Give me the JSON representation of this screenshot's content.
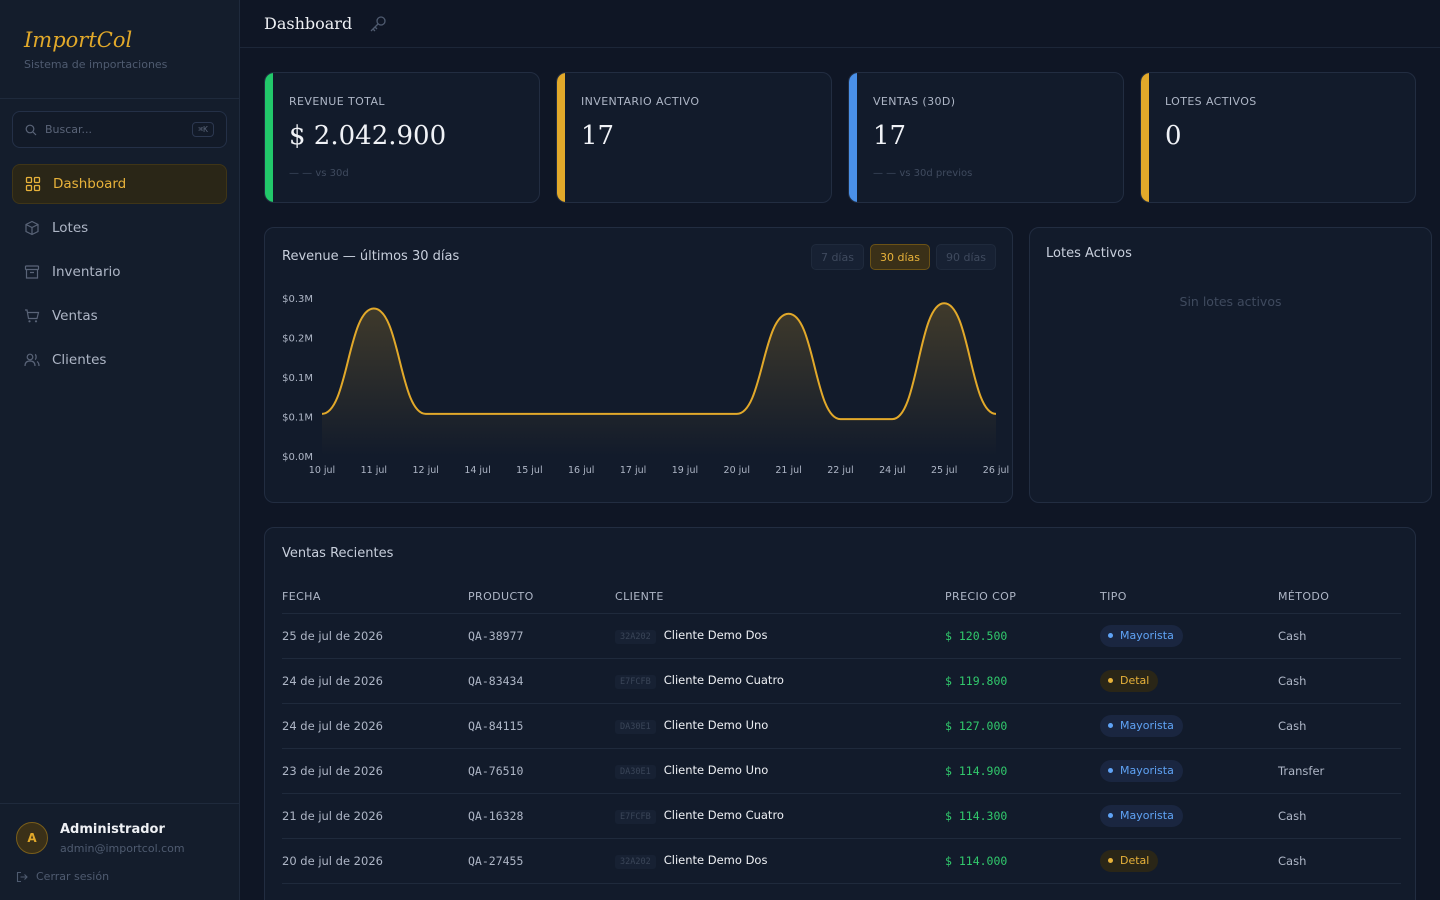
{
  "sidebar": {
    "brand": "ImportCol",
    "brand_sub": "Sistema de importaciones",
    "search_placeholder": "Buscar...",
    "search_shortcut": "⌘K",
    "items": [
      {
        "label": "Dashboard",
        "icon": "grid-icon",
        "active": true
      },
      {
        "label": "Lotes",
        "icon": "box-icon",
        "active": false
      },
      {
        "label": "Inventario",
        "icon": "archive-icon",
        "active": false
      },
      {
        "label": "Ventas",
        "icon": "cart-icon",
        "active": false
      },
      {
        "label": "Clientes",
        "icon": "users-icon",
        "active": false
      }
    ],
    "user": {
      "initial": "A",
      "name": "Administrador",
      "email": "admin@importcol.com"
    },
    "logout": "Cerrar sesión"
  },
  "topbar": {
    "title": "Dashboard",
    "icon": "key-icon"
  },
  "stats": [
    {
      "label": "REVENUE TOTAL",
      "value": "$ 2.042.900",
      "sub": "— — vs 30d",
      "color": "#22c86a"
    },
    {
      "label": "INVENTARIO ACTIVO",
      "value": "17",
      "sub": "",
      "color": "#e2a92a"
    },
    {
      "label": "VENTAS (30D)",
      "value": "17",
      "sub": "— — vs 30d previos",
      "color": "#4a90e8"
    },
    {
      "label": "LOTES ACTIVOS",
      "value": "0",
      "sub": "",
      "color": "#e2a92a"
    }
  ],
  "revenue_panel": {
    "title": "Revenue — últimos 30 días",
    "ranges": [
      {
        "label": "7 días",
        "active": false
      },
      {
        "label": "30 días",
        "active": true
      },
      {
        "label": "90 días",
        "active": false
      }
    ]
  },
  "chart_data": {
    "type": "area",
    "title": "Revenue — últimos 30 días",
    "x": [
      "10 jul",
      "11 jul",
      "12 jul",
      "14 jul",
      "15 jul",
      "16 jul",
      "17 jul",
      "19 jul",
      "20 jul",
      "21 jul",
      "22 jul",
      "24 jul",
      "25 jul",
      "26 jul"
    ],
    "values": [
      0.08,
      0.28,
      0.08,
      0.08,
      0.08,
      0.08,
      0.08,
      0.08,
      0.08,
      0.27,
      0.07,
      0.07,
      0.29,
      0.08
    ],
    "y_ticks": [
      "$0.0M",
      "$0.1M",
      "$0.1M",
      "$0.2M",
      "$0.3M"
    ],
    "y_tick_values": [
      0,
      0.075,
      0.15,
      0.225,
      0.3
    ],
    "ylim": [
      0,
      0.3
    ],
    "color": "#e2a92a",
    "grid": false,
    "legend": "none"
  },
  "lotes_panel": {
    "title": "Lotes Activos",
    "empty": "Sin lotes activos"
  },
  "ventas": {
    "title": "Ventas Recientes",
    "columns": [
      "FECHA",
      "PRODUCTO",
      "CLIENTE",
      "PRECIO COP",
      "TIPO",
      "MÉTODO"
    ],
    "rows": [
      {
        "fecha": "25 de jul de 2026",
        "producto": "QA-38977",
        "code": "32A202",
        "cliente": "Cliente Demo Dos",
        "precio": "$ 120.500",
        "tipo": "Mayorista",
        "tipo_kind": "may",
        "metodo": "Cash"
      },
      {
        "fecha": "24 de jul de 2026",
        "producto": "QA-83434",
        "code": "E7FCFB",
        "cliente": "Cliente Demo Cuatro",
        "precio": "$ 119.800",
        "tipo": "Detal",
        "tipo_kind": "det",
        "metodo": "Cash"
      },
      {
        "fecha": "24 de jul de 2026",
        "producto": "QA-84115",
        "code": "DA30E1",
        "cliente": "Cliente Demo Uno",
        "precio": "$ 127.000",
        "tipo": "Mayorista",
        "tipo_kind": "may",
        "metodo": "Cash"
      },
      {
        "fecha": "23 de jul de 2026",
        "producto": "QA-76510",
        "code": "DA30E1",
        "cliente": "Cliente Demo Uno",
        "precio": "$ 114.900",
        "tipo": "Mayorista",
        "tipo_kind": "may",
        "metodo": "Transfer"
      },
      {
        "fecha": "21 de jul de 2026",
        "producto": "QA-16328",
        "code": "E7FCFB",
        "cliente": "Cliente Demo Cuatro",
        "precio": "$ 114.300",
        "tipo": "Mayorista",
        "tipo_kind": "may",
        "metodo": "Cash"
      },
      {
        "fecha": "20 de jul de 2026",
        "producto": "QA-27455",
        "code": "32A202",
        "cliente": "Cliente Demo Dos",
        "precio": "$ 114.000",
        "tipo": "Detal",
        "tipo_kind": "det",
        "metodo": "Cash"
      }
    ]
  }
}
